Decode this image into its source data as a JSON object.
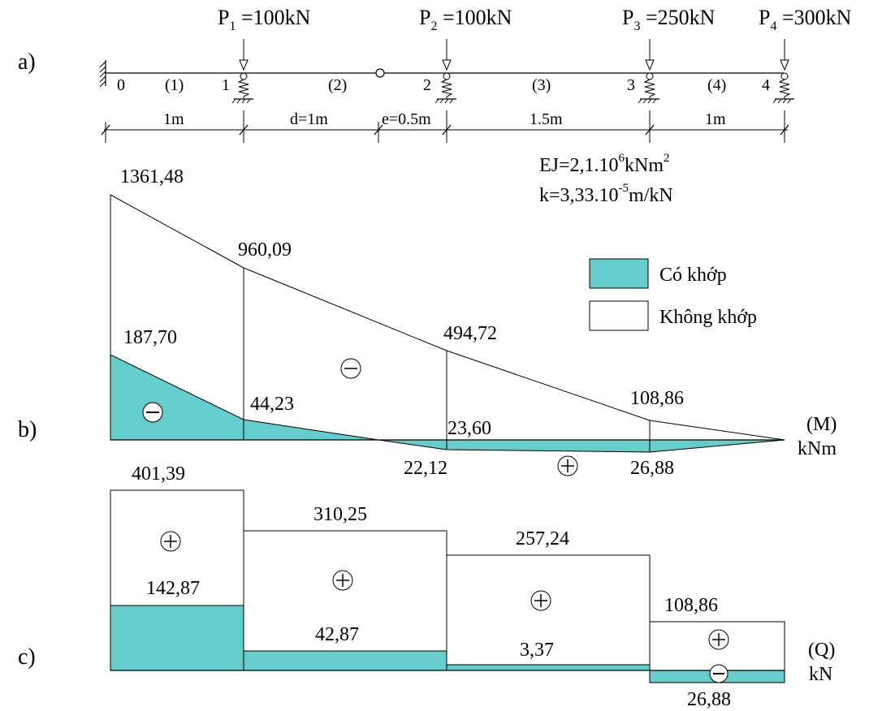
{
  "colors": {
    "hinge_fill": "#66CCCC",
    "line": "#000000",
    "background": "#ffffff"
  },
  "part_labels": {
    "a": "a)",
    "b": "b)",
    "c": "c)"
  },
  "beam": {
    "loads": [
      {
        "P": "P",
        "sub": "1",
        "val": " =100kN"
      },
      {
        "P": "P",
        "sub": "2",
        "val": " =100kN"
      },
      {
        "P": "P",
        "sub": "3",
        "val": " =250kN"
      },
      {
        "P": "P",
        "sub": "4",
        "val": " =300kN"
      }
    ],
    "node_labels": [
      "0",
      "1",
      "2",
      "3",
      "4"
    ],
    "segment_labels": [
      "(1)",
      "(2)",
      "(3)",
      "(4)"
    ],
    "dimensions": [
      "1m",
      "d=1m",
      "e=0.5m",
      "1.5m",
      "1m"
    ],
    "ej": {
      "prefix": "EJ=2,1.10",
      "exp": "6",
      "unit": "kNm",
      "unit_exp": "2"
    },
    "k": {
      "prefix": "k=3,33.10",
      "exp": "-5",
      "unit": "m/kN"
    }
  },
  "legend": {
    "with_hinge": "Có khớp",
    "without_hinge": "Không khớp"
  },
  "moment": {
    "label": "(M)",
    "unit": "kNm",
    "no_hinge_values": [
      "1361,48",
      "960,09",
      "494,72",
      "108,86"
    ],
    "hinge_values": [
      "187,70",
      "44,23",
      "22,12",
      "26,88"
    ],
    "hinge_inner_label": "23,60",
    "signs": [
      "−",
      "−",
      "+"
    ]
  },
  "shear": {
    "label": "(Q)",
    "unit": "kN",
    "no_hinge_values": [
      "401,39",
      "310,25",
      "257,24",
      "108,86"
    ],
    "hinge_values": [
      "142,87",
      "42,87",
      "3,37",
      "26,88"
    ],
    "signs": [
      "+",
      "+",
      "+",
      "+",
      "−"
    ]
  },
  "chart_data": {
    "type": "diagram",
    "positions_m": [
      0,
      1,
      2.5,
      4,
      5
    ],
    "moment_no_hinge_kNm": [
      1361.48,
      960.09,
      494.72,
      108.86,
      0
    ],
    "moment_hinge_kNm": [
      187.7,
      44.23,
      -22.12,
      -26.88,
      0
    ],
    "shear_no_hinge_kN": [
      401.39,
      310.25,
      257.24,
      108.86
    ],
    "shear_hinge_kN": [
      142.87,
      42.87,
      3.37,
      -26.88
    ]
  }
}
